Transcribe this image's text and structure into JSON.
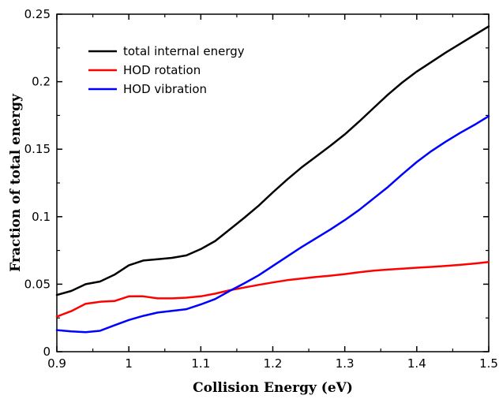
{
  "chart_data": {
    "type": "line",
    "title": "",
    "xlabel": "Collision Energy (eV)",
    "ylabel": "Fraction of total energy",
    "xlim": [
      0.9,
      1.5
    ],
    "ylim": [
      0,
      0.25
    ],
    "grid": false,
    "legend_placement": "top-left",
    "x_ticks": [
      "0.9",
      "1",
      "1.1",
      "1.2",
      "1.3",
      "1.4",
      "1.5"
    ],
    "y_ticks": [
      "0",
      "0.05",
      "0.1",
      "0.15",
      "0.2",
      "0.25"
    ],
    "x_tick_values": [
      0.9,
      1.0,
      1.1,
      1.2,
      1.3,
      1.4,
      1.5
    ],
    "y_tick_values": [
      0,
      0.05,
      0.1,
      0.15,
      0.2,
      0.25
    ],
    "series": [
      {
        "name": "total internal energy",
        "color": "#000000",
        "x": [
          0.9,
          0.92,
          0.94,
          0.96,
          0.98,
          1.0,
          1.02,
          1.04,
          1.06,
          1.08,
          1.1,
          1.12,
          1.14,
          1.16,
          1.18,
          1.2,
          1.22,
          1.24,
          1.26,
          1.28,
          1.3,
          1.32,
          1.34,
          1.36,
          1.38,
          1.4,
          1.42,
          1.44,
          1.46,
          1.48,
          1.5
        ],
        "y": [
          0.042,
          0.045,
          0.05,
          0.052,
          0.057,
          0.064,
          0.0675,
          0.0685,
          0.0695,
          0.0713,
          0.076,
          0.082,
          0.0905,
          0.099,
          0.108,
          0.118,
          0.1275,
          0.1365,
          0.1445,
          0.1525,
          0.161,
          0.1705,
          0.1805,
          0.1905,
          0.1995,
          0.2075,
          0.2145,
          0.2215,
          0.228,
          0.2345,
          0.241
        ]
      },
      {
        "name": "HOD rotation",
        "color": "#ff0000",
        "x": [
          0.9,
          0.92,
          0.94,
          0.96,
          0.98,
          1.0,
          1.02,
          1.04,
          1.06,
          1.08,
          1.1,
          1.12,
          1.14,
          1.16,
          1.18,
          1.2,
          1.22,
          1.24,
          1.26,
          1.28,
          1.3,
          1.32,
          1.34,
          1.36,
          1.38,
          1.4,
          1.42,
          1.44,
          1.46,
          1.48,
          1.5
        ],
        "y": [
          0.026,
          0.03,
          0.0355,
          0.037,
          0.0375,
          0.041,
          0.041,
          0.0395,
          0.0395,
          0.04,
          0.041,
          0.043,
          0.0455,
          0.0475,
          0.0495,
          0.0513,
          0.053,
          0.0542,
          0.0553,
          0.0563,
          0.0575,
          0.0588,
          0.06,
          0.0608,
          0.0615,
          0.0622,
          0.0628,
          0.0635,
          0.0643,
          0.0653,
          0.0665
        ]
      },
      {
        "name": "HOD vibration",
        "color": "#0000ff",
        "x": [
          0.9,
          0.92,
          0.94,
          0.96,
          0.98,
          1.0,
          1.02,
          1.04,
          1.06,
          1.08,
          1.1,
          1.12,
          1.14,
          1.16,
          1.18,
          1.2,
          1.22,
          1.24,
          1.26,
          1.28,
          1.3,
          1.32,
          1.34,
          1.36,
          1.38,
          1.4,
          1.42,
          1.44,
          1.46,
          1.48,
          1.5
        ],
        "y": [
          0.016,
          0.015,
          0.0145,
          0.0155,
          0.0195,
          0.0235,
          0.0265,
          0.029,
          0.0302,
          0.0315,
          0.035,
          0.039,
          0.045,
          0.0505,
          0.0565,
          0.0635,
          0.0705,
          0.0775,
          0.084,
          0.0905,
          0.0975,
          0.105,
          0.1135,
          0.122,
          0.1315,
          0.1405,
          0.1485,
          0.1555,
          0.162,
          0.168,
          0.1745
        ]
      }
    ]
  }
}
